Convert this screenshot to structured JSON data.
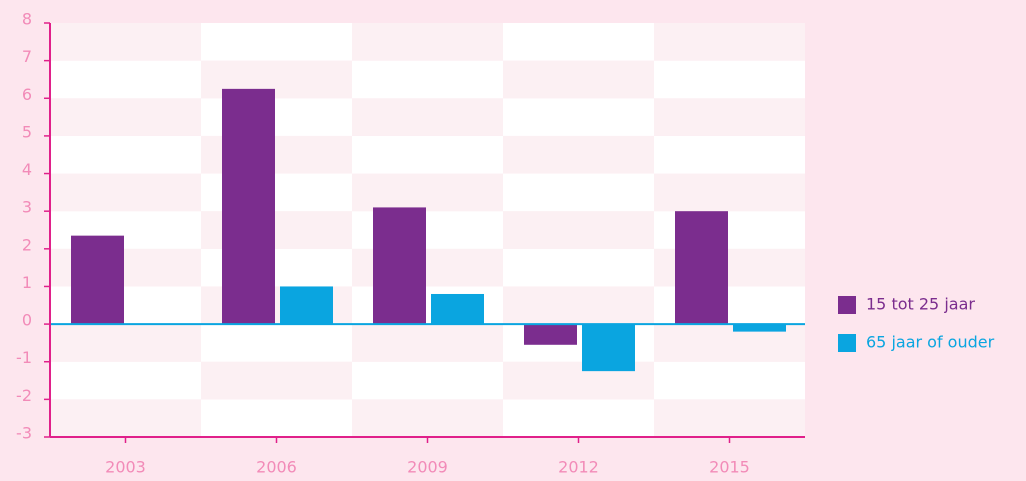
{
  "chart_data": {
    "type": "bar",
    "categories": [
      "2003",
      "2006",
      "2009",
      "2012",
      "2015"
    ],
    "series": [
      {
        "name": "15 tot 25 jaar",
        "color": "#7b2d8e",
        "values": [
          2.35,
          6.25,
          3.1,
          -0.55,
          3.0
        ]
      },
      {
        "name": "65 jaar of ouder",
        "color": "#0aa5e0",
        "values": [
          0,
          1.0,
          0.8,
          -1.25,
          -0.2
        ]
      }
    ],
    "ylim": [
      -3,
      8
    ],
    "yticks": [
      -3,
      -2,
      -1,
      0,
      1,
      2,
      3,
      4,
      5,
      6,
      7,
      8
    ],
    "axis_color": "#e0208a",
    "zero_line_color": "#0aa5e0",
    "legend": "right"
  }
}
